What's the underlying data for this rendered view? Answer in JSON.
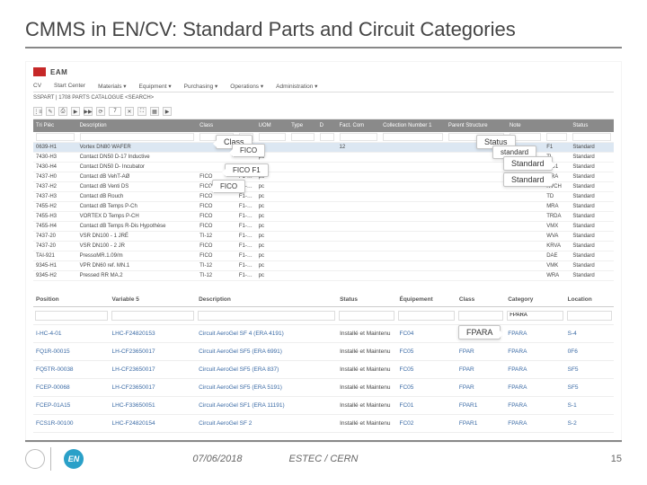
{
  "title": "CMMS in EN/CV: Standard Parts and Circuit Categories",
  "app": {
    "name": "EAM",
    "tabs": [
      "CV",
      "Start Center",
      "Materials ▾",
      "Equipment ▾",
      "Purchasing ▾",
      "Operations ▾",
      "Administration ▾"
    ],
    "breadcrumb": "SSPART  |  1708 PARTS CATALOGUE <SEARCH>",
    "toolbar_icons": [
      "⋮≡",
      "✎",
      "⎙",
      "▶",
      "▶▶",
      "⟳",
      "7",
      "✕",
      "⛶",
      "▦",
      "▶"
    ]
  },
  "callouts": {
    "class": "Class",
    "fico1": "FICO",
    "fico2": "FICO       F1",
    "fico3": "FICO",
    "status": "Status",
    "standard": "standard",
    "std1": "Standard",
    "std2": "Standard",
    "fpara": "FPARA"
  },
  "upper": {
    "columns": [
      "Tri Pièc",
      "Description",
      "Class",
      "",
      "UOM",
      "Type",
      "D",
      "Fact. Com",
      "Collection Number 1",
      "Parent Structure",
      "Note",
      "",
      "Status"
    ],
    "rows": [
      {
        "sel": true,
        "cells": [
          "0639-H1",
          "Vortex DN80 WAFER",
          "",
          "",
          "pc",
          "",
          "",
          "12",
          "",
          "",
          "",
          "F1",
          "Standard"
        ]
      },
      {
        "cells": [
          "7430-H3",
          "Contact DN50 D-17  Inductive",
          "",
          "",
          "pc",
          "",
          "",
          "",
          "",
          "",
          "",
          "TI",
          "Standard"
        ]
      },
      {
        "cells": [
          "7430-H4",
          "Contact DN50 D- Incubator",
          "",
          "",
          "pc",
          "",
          "",
          "",
          "",
          "",
          "",
          "TID1",
          "Standard"
        ]
      },
      {
        "cells": [
          "7437-H0",
          "Contact dB  VehT-AØ",
          "FICO",
          "F1-ICP-5",
          "pc",
          "",
          "",
          "",
          "",
          "",
          "",
          "GRA",
          "Standard"
        ]
      },
      {
        "cells": [
          "7437-H2",
          "Contact dB  Venti DS",
          "FICO",
          "F1-ICP-6",
          "pc",
          "",
          "",
          "",
          "",
          "",
          "",
          "KVCH",
          "Standard"
        ]
      },
      {
        "cells": [
          "7437-H3",
          "Contact dB  Rouch",
          "FICO",
          "F1-ICU-1",
          "pc",
          "",
          "",
          "",
          "",
          "",
          "",
          "TD",
          "Standard"
        ]
      },
      {
        "cells": [
          "7455-H2",
          "Contact dB  Temps P-Ch",
          "FICO",
          "F1-ICU-2",
          "pc",
          "",
          "",
          "",
          "",
          "",
          "",
          "MRA",
          "Standard"
        ]
      },
      {
        "cells": [
          "7455-H3",
          "VORTEX D  Temps P-CH",
          "FICO",
          "F1-ICU-3",
          "pc",
          "",
          "",
          "",
          "",
          "",
          "",
          "TRDA",
          "Standard"
        ]
      },
      {
        "cells": [
          "7455-H4",
          "Contact dB  Temps  R-Dis  Hypothèse",
          "FICO",
          "F1-ICU-4",
          "pc",
          "",
          "",
          "",
          "",
          "",
          "",
          "VMX",
          "Standard"
        ]
      },
      {
        "cells": [
          "7437-20",
          "VSR DN100 - 1 JRÉ",
          "TI-12",
          "F1-JD-2",
          "pc",
          "",
          "",
          "",
          "",
          "",
          "",
          "WVA",
          "Standard"
        ]
      },
      {
        "cells": [
          "7437-20",
          "VSR DN100 - 2 JR",
          "FICO",
          "F1-JD-3",
          "pc",
          "",
          "",
          "",
          "",
          "",
          "",
          "KRVA",
          "Standard"
        ]
      },
      {
        "cells": [
          "TAI-921",
          "PressoMR.1.09/m",
          "FICO",
          "F1-OP-2",
          "pc",
          "",
          "",
          "",
          "",
          "",
          "",
          "DAE",
          "Standard"
        ]
      },
      {
        "cells": [
          "9345-H1",
          "VPR DN60  ref. MN.1",
          "TI-12",
          "F1-OP-3",
          "pc",
          "",
          "",
          "",
          "",
          "",
          "",
          "VMK",
          "Standard"
        ]
      },
      {
        "cells": [
          "9345-H2",
          "Pressed  RR MA.2",
          "TI-12",
          "F1-OP-4",
          "pc",
          "",
          "",
          "",
          "",
          "",
          "",
          "WRA",
          "Standard"
        ]
      }
    ]
  },
  "lower": {
    "columns": [
      "Position",
      "Variable 5",
      "Description",
      "Status",
      "Équipement",
      "Class",
      "Category",
      "Location"
    ],
    "filter_value": "FPARA",
    "filter_col": 6,
    "rows": [
      [
        "I-HC-4-01",
        "LHC-F24820153",
        "Circuit AeroGel SF 4 (ERA 4191)",
        "Installé et Maintenu",
        "FC04",
        "FPAR1",
        "FPARA",
        "S-4"
      ],
      [
        "FQ1R-00015",
        "LH-CF23650017",
        "Circuit AeroGel SF5 (ERA 6991)",
        "Installé et Maintenu",
        "FC05",
        "FPAR",
        "FPARA",
        "0F6"
      ],
      [
        "FQ5TR-00038",
        "LH-CF23650017",
        "Circuit AeroGel SF5 (ERA 837)",
        "Installé et Maintenu",
        "FC05",
        "FPAR",
        "FPARA",
        "SF5"
      ],
      [
        "FCEP-00068",
        "LH-CF23650017",
        "Circuit AeroGel SF5 (ERA 5191)",
        "Installé et Maintenu",
        "FC05",
        "FPAR",
        "FPARA",
        "SF5"
      ],
      [
        "FCEP-01A15",
        "LHC-F33650051",
        "Circuit AeroGel SF1 (ERA 11191)",
        "Installé et Maintenu",
        "FC01",
        "FPAR1",
        "FPARA",
        "S-1"
      ],
      [
        "FCS1R-00100",
        "LHC-F24820154",
        "Circuit AeroGel SF 2",
        "Installé et Maintenu",
        "FC02",
        "FPAR1",
        "FPARA",
        "S-2"
      ]
    ]
  },
  "footer": {
    "en": "EN",
    "date": "07/06/2018",
    "center": "ESTEC / CERN",
    "page": "15"
  },
  "colors": {
    "brand": "#c62828",
    "header": "#8a8a8a",
    "selrow": "#dce7f2",
    "link": "#3a6aa5",
    "enlogo": "#2aa0c8"
  }
}
